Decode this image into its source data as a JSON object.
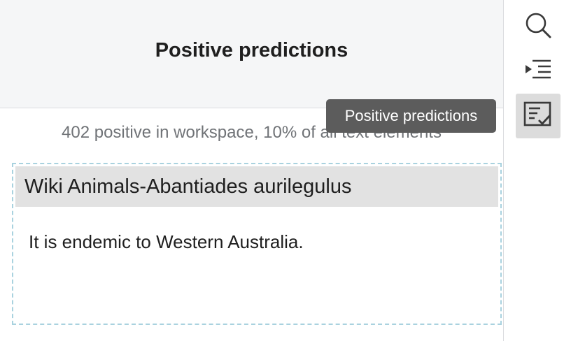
{
  "panel": {
    "title": "Positive predictions",
    "summary": "402 positive in workspace, 10% of all text elements"
  },
  "card": {
    "title": "Wiki Animals-Abantiades aurilegulus",
    "text": "It is endemic to Western Australia."
  },
  "rail": {
    "items": [
      {
        "icon": "search-icon"
      },
      {
        "icon": "outline-indent-icon"
      },
      {
        "icon": "positive-predictions-icon",
        "active": true
      }
    ]
  },
  "tooltip": {
    "text": "Positive predictions"
  },
  "colors": {
    "header_bg": "#f5f6f7",
    "card_border": "#a9d2df",
    "card_header_bg": "#e2e2e2",
    "tooltip_bg": "#5c5c5c",
    "active_rail_bg": "#dcdcdc"
  }
}
